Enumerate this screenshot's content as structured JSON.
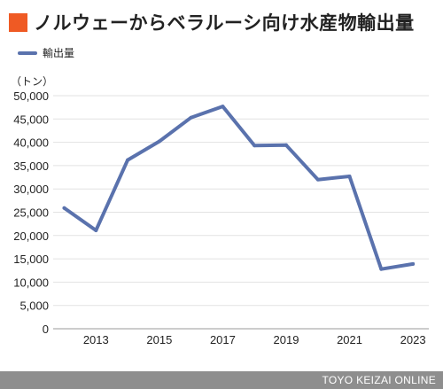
{
  "title": "ノルウェーからベラルーシ向け水産物輸出量",
  "footer": "TOYO KEIZAI ONLINE",
  "colors": {
    "accent": "#ef5a24",
    "series": "#5a72ad",
    "grid": "#e2e2e2",
    "footer": "#8e8e8e"
  },
  "chart_data": {
    "type": "line",
    "unit_label": "（トン）",
    "x": [
      2012,
      2013,
      2014,
      2015,
      2016,
      2017,
      2018,
      2019,
      2020,
      2021,
      2022,
      2023
    ],
    "series": [
      {
        "name": "輸出量",
        "values": [
          25900,
          21100,
          36200,
          40200,
          45300,
          47700,
          39300,
          39400,
          32000,
          32700,
          12800,
          13900
        ]
      }
    ],
    "xticks": [
      2013,
      2015,
      2017,
      2019,
      2021,
      2023
    ],
    "ylim": [
      0,
      50000
    ],
    "yticks": [
      0,
      5000,
      10000,
      15000,
      20000,
      25000,
      30000,
      35000,
      40000,
      45000,
      50000
    ],
    "ytick_labels": [
      "0",
      "5,000",
      "10,000",
      "15,000",
      "20,000",
      "25,000",
      "30,000",
      "35,000",
      "40,000",
      "45,000",
      "50,000"
    ],
    "grid": true,
    "legend": "top-left"
  }
}
